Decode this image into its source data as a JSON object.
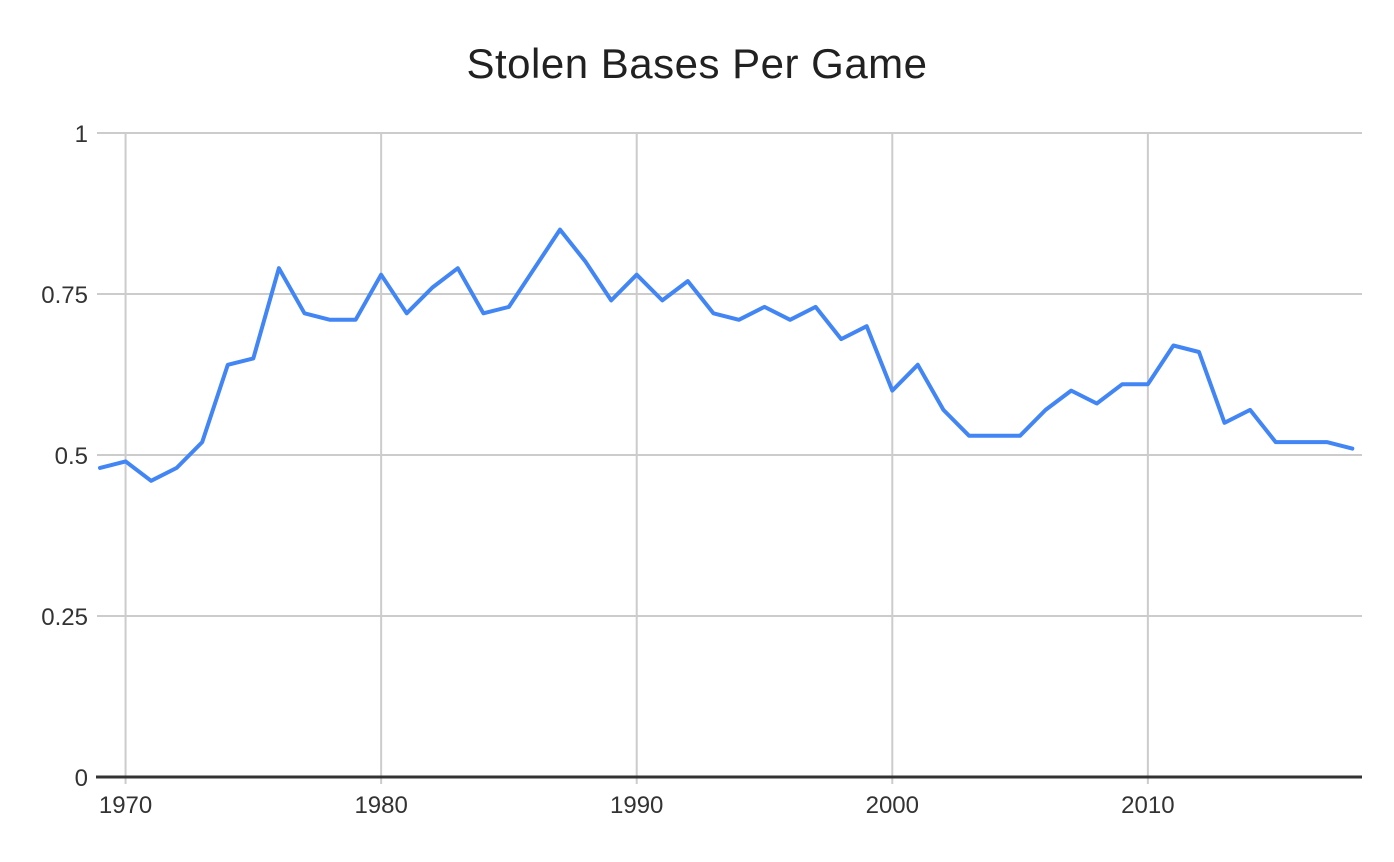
{
  "chart_data": {
    "type": "line",
    "title": "Stolen Bases Per Game",
    "x": [
      1969,
      1970,
      1971,
      1972,
      1973,
      1974,
      1975,
      1976,
      1977,
      1978,
      1979,
      1980,
      1981,
      1982,
      1983,
      1984,
      1985,
      1986,
      1987,
      1988,
      1989,
      1990,
      1991,
      1992,
      1993,
      1994,
      1995,
      1996,
      1997,
      1998,
      1999,
      2000,
      2001,
      2002,
      2003,
      2004,
      2005,
      2006,
      2007,
      2008,
      2009,
      2010,
      2011,
      2012,
      2013,
      2014,
      2015,
      2016,
      2017,
      2018
    ],
    "series": [
      {
        "name": "Stolen Bases Per Game",
        "values": [
          0.48,
          0.49,
          0.46,
          0.48,
          0.52,
          0.64,
          0.65,
          0.79,
          0.72,
          0.71,
          0.71,
          0.78,
          0.72,
          0.76,
          0.79,
          0.72,
          0.73,
          0.79,
          0.85,
          0.8,
          0.74,
          0.78,
          0.74,
          0.77,
          0.72,
          0.71,
          0.73,
          0.71,
          0.73,
          0.68,
          0.7,
          0.6,
          0.64,
          0.57,
          0.53,
          0.53,
          0.53,
          0.57,
          0.6,
          0.58,
          0.61,
          0.61,
          0.67,
          0.66,
          0.55,
          0.57,
          0.52,
          0.52,
          0.52,
          0.51
        ]
      }
    ],
    "xlabel": "",
    "ylabel": "",
    "x_ticks": [
      1970,
      1980,
      1990,
      2000,
      2010
    ],
    "x_tick_labels": [
      "1970",
      "1980",
      "1990",
      "2000",
      "2010"
    ],
    "y_ticks": [
      0,
      0.25,
      0.5,
      0.75,
      1
    ],
    "y_tick_labels": [
      "0",
      "0.25",
      "0.5",
      "0.75",
      "1"
    ],
    "xlim": [
      1969,
      2018.3
    ],
    "ylim": [
      0,
      1
    ],
    "grid": true,
    "legend_position": "none",
    "line_color": "#4285f4",
    "line_width": 4,
    "gridline_color": "#cccccc",
    "axis_line_color": "#333333",
    "title_color": "#212121",
    "tick_label_color": "#333333",
    "background_color": "#ffffff"
  }
}
